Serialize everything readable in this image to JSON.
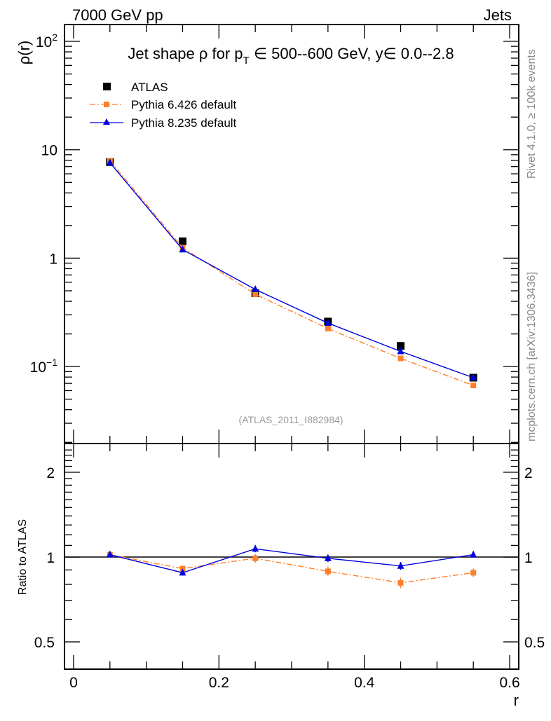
{
  "header": {
    "left": "7000 GeV pp",
    "right": "Jets"
  },
  "side_labels": {
    "top": "Rivet 4.1.0, ≥ 100k events",
    "bottom": "mcplots.cern.ch [arXiv:1306.3436]"
  },
  "analysis_id": "(ATLAS_2011_I882984)",
  "colors": {
    "atlas": "#000000",
    "pythia6": "#ff7f2a",
    "pythia8": "#0000dd"
  },
  "chart_data": [
    {
      "type": "line",
      "title": "Jet shape ρ for p_T ∈ 500--600 GeV, y∈ 0.0--2.8",
      "title_parts": {
        "a": "Jet shape ρ for p",
        "sub": "T",
        "b": " ∈ 500--600 GeV, y∈ 0.0--2.8"
      },
      "ylabel": "ρ(r)",
      "xlabel": "r",
      "yscale": "log",
      "ylim": [
        0.0195,
        143
      ],
      "xlim": [
        -0.0125,
        0.6125
      ],
      "yticks": [
        {
          "v": 100,
          "label": "10",
          "exp": "2"
        },
        {
          "v": 10,
          "label": "10",
          "exp": ""
        },
        {
          "v": 1,
          "label": "1",
          "exp": ""
        },
        {
          "v": 0.1,
          "label": "10",
          "exp": "−1"
        }
      ],
      "legend_placement": "top-left",
      "x": [
        0.05,
        0.15,
        0.25,
        0.35,
        0.45,
        0.55
      ],
      "series": [
        {
          "name": "ATLAS",
          "values": [
            7.7,
            1.43,
            0.475,
            0.26,
            0.155,
            0.079
          ],
          "marker": "square"
        },
        {
          "name": "Pythia 6.426 default",
          "values": [
            7.9,
            1.25,
            0.465,
            0.224,
            0.119,
            0.067
          ],
          "marker": "square",
          "style": "dashdot"
        },
        {
          "name": "Pythia 8.235 default",
          "values": [
            7.6,
            1.2,
            0.515,
            0.252,
            0.138,
            0.079
          ],
          "marker": "triangle",
          "style": "solid"
        }
      ]
    },
    {
      "type": "line",
      "ylabel": "Ratio to ATLAS",
      "xlabel": "r",
      "yscale": "log",
      "ylim": [
        0.4,
        2.53
      ],
      "xlim": [
        -0.0125,
        0.6125
      ],
      "yticks": [
        {
          "v": 2,
          "label": "2"
        },
        {
          "v": 1,
          "label": "1"
        },
        {
          "v": 0.5,
          "label": "0.5"
        }
      ],
      "xticks": [
        {
          "v": 0,
          "label": "0"
        },
        {
          "v": 0.2,
          "label": "0.2"
        },
        {
          "v": 0.4,
          "label": "0.4"
        },
        {
          "v": 0.6,
          "label": "0.6"
        }
      ],
      "x": [
        0.05,
        0.15,
        0.25,
        0.35,
        0.45,
        0.55
      ],
      "series": [
        {
          "name": "Pythia 6.426 default",
          "values": [
            1.02,
            0.91,
            0.99,
            0.89,
            0.81,
            0.88
          ],
          "errors": [
            0.02,
            0.02,
            0.035,
            0.035,
            0.035,
            0.03
          ]
        },
        {
          "name": "Pythia 8.235 default",
          "values": [
            1.02,
            0.88,
            1.07,
            0.99,
            0.93,
            1.02
          ],
          "errors": [
            0.02,
            0.02,
            0.03,
            0.03,
            0.03,
            0.025
          ]
        }
      ]
    }
  ]
}
